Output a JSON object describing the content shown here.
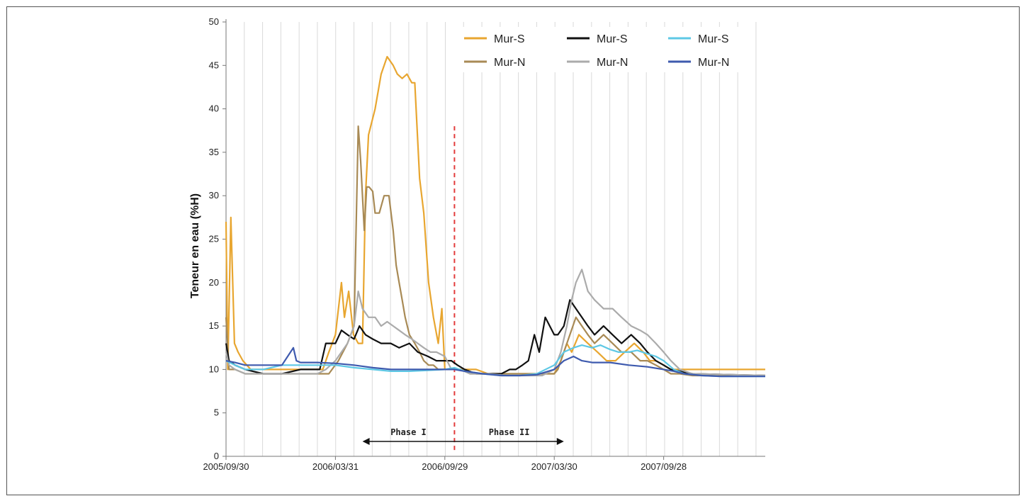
{
  "chart_data": {
    "type": "line",
    "ylabel": "Teneur en eau (%H)",
    "xlabel": "",
    "ylim": [
      0,
      50
    ],
    "yticks": [
      0,
      5,
      10,
      15,
      20,
      25,
      30,
      35,
      40,
      45,
      50
    ],
    "xlim": [
      "2005-09-30",
      "2008-03-15"
    ],
    "xticks": [
      "2005/09/30",
      "2006/03/31",
      "2006/09/29",
      "2007/03/30",
      "2007/09/28"
    ],
    "grid": "vertical",
    "legend_position": "top-right",
    "phase_divider": "2006-10-15",
    "phases": [
      {
        "label": "Phase I",
        "start": "2006-05-15",
        "end": "2006-10-15"
      },
      {
        "label": "Phase II",
        "start": "2006-10-15",
        "end": "2007-04-15"
      }
    ],
    "series": [
      {
        "name": "Mur-S",
        "color": "#E8A630",
        "x": [
          "2005-09-30",
          "2005-10-03",
          "2005-10-08",
          "2005-10-14",
          "2005-10-20",
          "2005-10-28",
          "2005-11-10",
          "2005-11-25",
          "2005-12-15",
          "2006-01-10",
          "2006-02-01",
          "2006-02-20",
          "2006-03-10",
          "2006-03-20",
          "2006-03-31",
          "2006-04-10",
          "2006-04-15",
          "2006-04-22",
          "2006-04-30",
          "2006-05-08",
          "2006-05-15",
          "2006-05-20",
          "2006-05-25",
          "2006-06-05",
          "2006-06-15",
          "2006-06-25",
          "2006-07-05",
          "2006-07-12",
          "2006-07-20",
          "2006-07-28",
          "2006-08-05",
          "2006-08-10",
          "2006-08-18",
          "2006-08-25",
          "2006-09-02",
          "2006-09-10",
          "2006-09-18",
          "2006-09-24",
          "2006-09-29",
          "2006-10-05",
          "2006-10-15",
          "2006-10-25",
          "2006-11-05",
          "2006-11-20",
          "2006-12-10",
          "2007-01-10",
          "2007-02-10",
          "2007-03-10",
          "2007-03-30",
          "2007-04-10",
          "2007-04-20",
          "2007-04-28",
          "2007-05-10",
          "2007-05-25",
          "2007-06-10",
          "2007-06-25",
          "2007-07-10",
          "2007-07-25",
          "2007-08-10",
          "2007-08-25",
          "2007-09-05",
          "2007-09-15",
          "2007-09-28",
          "2007-10-10",
          "2007-10-25",
          "2007-11-10",
          "2008-03-15"
        ],
        "values": [
          27,
          10,
          27.5,
          13,
          12,
          11,
          10,
          10,
          10,
          10,
          10,
          10,
          10,
          12,
          14,
          20,
          16,
          19,
          14,
          13,
          13,
          30,
          37,
          40,
          44,
          46,
          45,
          44,
          43.5,
          44,
          43,
          43,
          32,
          28,
          20,
          16,
          13,
          17,
          10,
          10,
          10,
          10,
          10,
          10,
          9.5,
          9.5,
          9.5,
          9.5,
          9.5,
          11,
          13,
          12,
          14,
          13,
          12,
          11,
          11,
          12,
          13,
          12,
          11,
          11,
          10.5,
          10,
          10,
          10,
          10
        ]
      },
      {
        "name": "Mur-N",
        "color": "#A88A55",
        "x": [
          "2005-09-30",
          "2005-10-05",
          "2005-10-15",
          "2005-11-01",
          "2005-12-01",
          "2006-01-01",
          "2006-02-01",
          "2006-03-01",
          "2006-03-20",
          "2006-04-05",
          "2006-04-20",
          "2006-05-01",
          "2006-05-08",
          "2006-05-12",
          "2006-05-18",
          "2006-05-22",
          "2006-05-26",
          "2006-06-01",
          "2006-06-05",
          "2006-06-12",
          "2006-06-20",
          "2006-06-28",
          "2006-07-05",
          "2006-07-10",
          "2006-07-15",
          "2006-07-20",
          "2006-07-25",
          "2006-08-01",
          "2006-08-10",
          "2006-08-18",
          "2006-08-25",
          "2006-09-02",
          "2006-09-10",
          "2006-09-18",
          "2006-09-29",
          "2006-10-10",
          "2006-10-25",
          "2006-11-10",
          "2006-12-10",
          "2007-01-10",
          "2007-02-10",
          "2007-03-10",
          "2007-03-30",
          "2007-04-05",
          "2007-04-15",
          "2007-04-25",
          "2007-05-05",
          "2007-05-15",
          "2007-05-25",
          "2007-06-05",
          "2007-06-20",
          "2007-07-05",
          "2007-07-20",
          "2007-08-05",
          "2007-08-20",
          "2007-09-01",
          "2007-09-15",
          "2007-09-28",
          "2007-10-10",
          "2007-10-25",
          "2007-11-15",
          "2008-03-15"
        ],
        "values": [
          16,
          10,
          10,
          9.5,
          9.5,
          9.5,
          9.5,
          9.5,
          9.5,
          11,
          13,
          15,
          38,
          34,
          26,
          31,
          31,
          30.5,
          28,
          28,
          30,
          30,
          26,
          22,
          20,
          18,
          16,
          14,
          13,
          12,
          11,
          10.5,
          10.5,
          10,
          10,
          10,
          10,
          9.5,
          9.5,
          9.5,
          9.5,
          9.5,
          9.5,
          10,
          12,
          14,
          16,
          15,
          14,
          13,
          14,
          13,
          12,
          12,
          11,
          11,
          10.5,
          10,
          9.5,
          9.5,
          9.3,
          9.3
        ]
      },
      {
        "name": "Mur-S",
        "color": "#111111",
        "x": [
          "2005-09-30",
          "2005-10-05",
          "2005-10-15",
          "2005-11-01",
          "2005-12-01",
          "2006-01-01",
          "2006-02-01",
          "2006-02-20",
          "2006-03-05",
          "2006-03-15",
          "2006-03-31",
          "2006-04-10",
          "2006-04-20",
          "2006-05-01",
          "2006-05-10",
          "2006-05-20",
          "2006-06-01",
          "2006-06-15",
          "2006-07-01",
          "2006-07-15",
          "2006-08-01",
          "2006-08-15",
          "2006-09-01",
          "2006-09-15",
          "2006-09-29",
          "2006-10-10",
          "2006-10-20",
          "2006-11-01",
          "2006-11-20",
          "2006-12-10",
          "2007-01-01",
          "2007-01-15",
          "2007-01-25",
          "2007-02-05",
          "2007-02-15",
          "2007-02-25",
          "2007-03-05",
          "2007-03-15",
          "2007-03-30",
          "2007-04-05",
          "2007-04-15",
          "2007-04-25",
          "2007-05-05",
          "2007-05-15",
          "2007-05-25",
          "2007-06-05",
          "2007-06-20",
          "2007-07-05",
          "2007-07-20",
          "2007-08-05",
          "2007-08-20",
          "2007-09-01",
          "2007-09-15",
          "2007-09-28",
          "2007-10-10",
          "2007-10-25",
          "2007-11-15",
          "2008-03-15"
        ],
        "values": [
          13,
          11,
          10.5,
          10,
          9.5,
          9.5,
          10,
          10,
          10,
          13,
          13,
          14.5,
          14,
          13.5,
          15,
          14,
          13.5,
          13,
          13,
          12.5,
          13,
          12,
          11.5,
          11,
          11,
          11,
          10.5,
          10,
          9.5,
          9.5,
          9.5,
          10,
          10,
          10.5,
          11,
          14,
          12,
          16,
          14,
          14,
          15,
          18,
          17,
          16,
          15,
          14,
          15,
          14,
          13,
          14,
          13,
          12,
          11,
          10.5,
          10,
          9.8,
          9.5,
          9.3
        ]
      },
      {
        "name": "Mur-N",
        "color": "#ABABAB",
        "x": [
          "2005-09-30",
          "2005-10-05",
          "2005-10-15",
          "2005-11-01",
          "2005-12-01",
          "2006-01-01",
          "2006-02-01",
          "2006-03-01",
          "2006-03-15",
          "2006-03-31",
          "2006-04-10",
          "2006-04-20",
          "2006-05-01",
          "2006-05-08",
          "2006-05-15",
          "2006-05-25",
          "2006-06-05",
          "2006-06-15",
          "2006-06-25",
          "2006-07-05",
          "2006-07-15",
          "2006-07-25",
          "2006-08-05",
          "2006-08-15",
          "2006-08-25",
          "2006-09-05",
          "2006-09-15",
          "2006-09-29",
          "2006-10-10",
          "2006-10-25",
          "2006-11-10",
          "2006-12-10",
          "2007-01-10",
          "2007-02-10",
          "2007-03-10",
          "2007-03-30",
          "2007-04-10",
          "2007-04-20",
          "2007-04-28",
          "2007-05-05",
          "2007-05-15",
          "2007-05-25",
          "2007-06-05",
          "2007-06-20",
          "2007-07-05",
          "2007-07-20",
          "2007-08-05",
          "2007-08-20",
          "2007-09-01",
          "2007-09-15",
          "2007-09-28",
          "2007-10-10",
          "2007-10-25",
          "2007-11-15",
          "2008-03-15"
        ],
        "values": [
          12,
          10.5,
          10,
          9.5,
          9.5,
          9.5,
          9.5,
          9.5,
          10,
          11,
          12,
          13,
          15,
          19,
          17,
          16,
          16,
          15,
          15.5,
          15,
          14.5,
          14,
          13.5,
          13,
          12.5,
          12,
          12,
          11.5,
          10,
          10,
          9.5,
          9.5,
          9.3,
          9.3,
          9.3,
          10,
          12,
          15,
          18,
          20,
          21.5,
          19,
          18,
          17,
          17,
          16,
          15,
          14.5,
          14,
          13,
          12,
          11,
          10,
          9.5,
          9.3
        ]
      },
      {
        "name": "Mur-S",
        "color": "#5EC8E5",
        "x": [
          "2005-09-30",
          "2005-10-15",
          "2005-11-01",
          "2005-12-01",
          "2006-01-01",
          "2006-02-01",
          "2006-03-01",
          "2006-03-31",
          "2006-05-01",
          "2006-06-01",
          "2006-07-01",
          "2006-08-01",
          "2006-09-01",
          "2006-09-29",
          "2006-10-15",
          "2006-11-01",
          "2006-12-01",
          "2007-01-01",
          "2007-02-01",
          "2007-03-01",
          "2007-03-30",
          "2007-04-15",
          "2007-05-01",
          "2007-05-15",
          "2007-06-01",
          "2007-06-15",
          "2007-07-01",
          "2007-07-15",
          "2007-08-01",
          "2007-08-15",
          "2007-09-01",
          "2007-09-15",
          "2007-09-28",
          "2007-10-15",
          "2007-11-01",
          "2007-12-01",
          "2008-01-01",
          "2008-03-15"
        ],
        "values": [
          11,
          10.5,
          10,
          10,
          10.5,
          10.5,
          10.5,
          10.5,
          10.2,
          10,
          9.8,
          9.8,
          9.9,
          10,
          10.2,
          9.8,
          9.5,
          9.3,
          9.3,
          9.5,
          10.5,
          12,
          12.5,
          12.8,
          12.5,
          12.8,
          12.3,
          12,
          12,
          12.2,
          11.8,
          11.5,
          11,
          10,
          9.5,
          9.3,
          9.2,
          9.2
        ]
      },
      {
        "name": "Mur-N",
        "color": "#3E5AAE",
        "x": [
          "2005-09-30",
          "2005-10-15",
          "2005-11-01",
          "2005-12-01",
          "2006-01-01",
          "2006-01-20",
          "2006-01-25",
          "2006-02-01",
          "2006-03-01",
          "2006-03-31",
          "2006-05-01",
          "2006-06-01",
          "2006-07-01",
          "2006-08-01",
          "2006-09-01",
          "2006-09-29",
          "2006-10-15",
          "2006-11-01",
          "2006-12-01",
          "2007-01-01",
          "2007-02-01",
          "2007-03-01",
          "2007-03-30",
          "2007-04-15",
          "2007-05-01",
          "2007-05-15",
          "2007-06-01",
          "2007-07-01",
          "2007-08-01",
          "2007-09-01",
          "2007-09-28",
          "2007-10-15",
          "2007-11-01",
          "2007-12-01",
          "2008-01-01",
          "2008-03-15"
        ],
        "values": [
          11,
          10.8,
          10.5,
          10.5,
          10.5,
          12.5,
          11,
          10.8,
          10.8,
          10.7,
          10.5,
          10.2,
          10,
          10,
          10,
          10,
          10,
          9.8,
          9.5,
          9.3,
          9.3,
          9.4,
          10,
          11,
          11.5,
          11,
          10.8,
          10.8,
          10.5,
          10.3,
          10,
          9.8,
          9.5,
          9.3,
          9.2,
          9.2
        ]
      }
    ]
  }
}
